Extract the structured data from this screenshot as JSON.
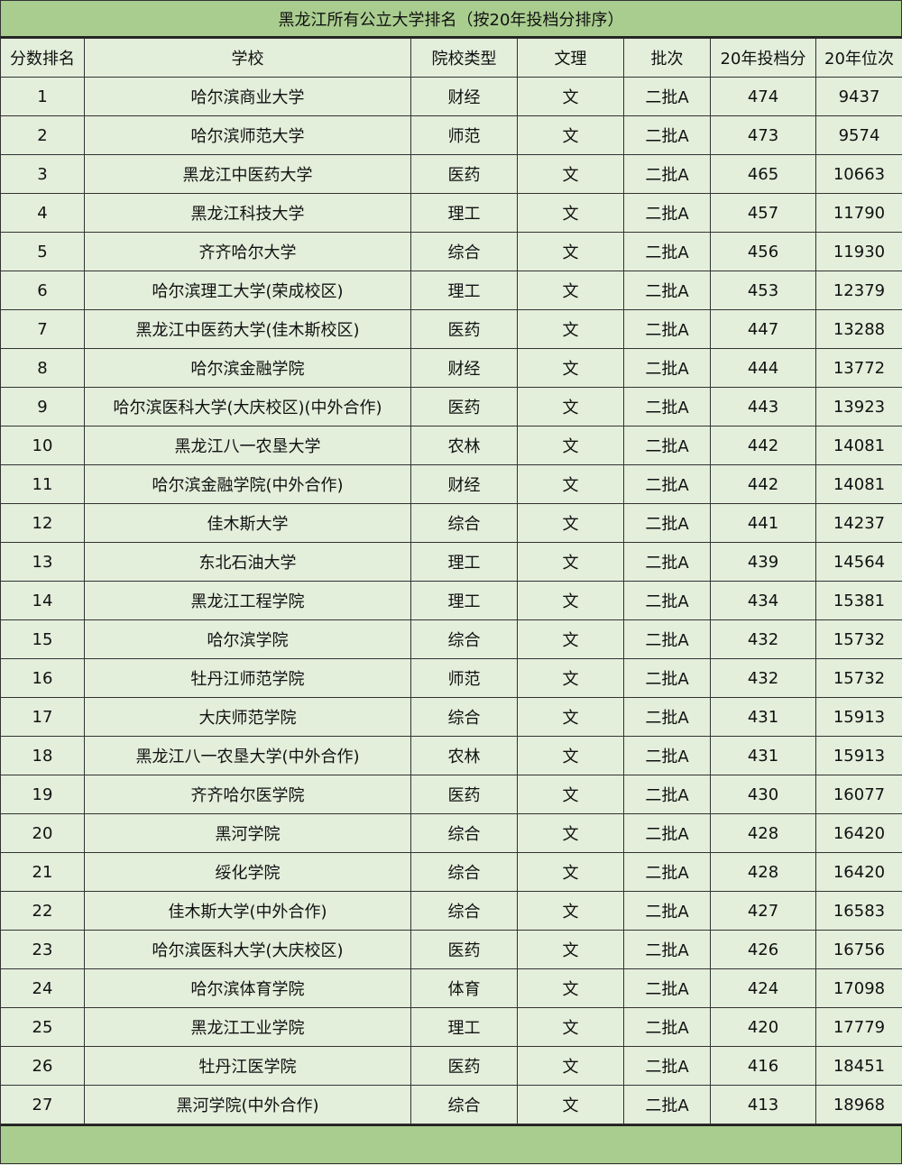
{
  "title": "黑龙江所有公立大学排名（按20年投档分排序）",
  "columns": [
    "分数排名",
    "学校",
    "院校类型",
    "文理",
    "批次",
    "20年投档分",
    "20年位次"
  ],
  "rows": [
    [
      "1",
      "哈尔滨商业大学",
      "财经",
      "文",
      "二批A",
      "474",
      "9437"
    ],
    [
      "2",
      "哈尔滨师范大学",
      "师范",
      "文",
      "二批A",
      "473",
      "9574"
    ],
    [
      "3",
      "黑龙江中医药大学",
      "医药",
      "文",
      "二批A",
      "465",
      "10663"
    ],
    [
      "4",
      "黑龙江科技大学",
      "理工",
      "文",
      "二批A",
      "457",
      "11790"
    ],
    [
      "5",
      "齐齐哈尔大学",
      "综合",
      "文",
      "二批A",
      "456",
      "11930"
    ],
    [
      "6",
      "哈尔滨理工大学(荣成校区)",
      "理工",
      "文",
      "二批A",
      "453",
      "12379"
    ],
    [
      "7",
      "黑龙江中医药大学(佳木斯校区)",
      "医药",
      "文",
      "二批A",
      "447",
      "13288"
    ],
    [
      "8",
      "哈尔滨金融学院",
      "财经",
      "文",
      "二批A",
      "444",
      "13772"
    ],
    [
      "9",
      "哈尔滨医科大学(大庆校区)(中外合作)",
      "医药",
      "文",
      "二批A",
      "443",
      "13923"
    ],
    [
      "10",
      "黑龙江八一农垦大学",
      "农林",
      "文",
      "二批A",
      "442",
      "14081"
    ],
    [
      "11",
      "哈尔滨金融学院(中外合作)",
      "财经",
      "文",
      "二批A",
      "442",
      "14081"
    ],
    [
      "12",
      "佳木斯大学",
      "综合",
      "文",
      "二批A",
      "441",
      "14237"
    ],
    [
      "13",
      "东北石油大学",
      "理工",
      "文",
      "二批A",
      "439",
      "14564"
    ],
    [
      "14",
      "黑龙江工程学院",
      "理工",
      "文",
      "二批A",
      "434",
      "15381"
    ],
    [
      "15",
      "哈尔滨学院",
      "综合",
      "文",
      "二批A",
      "432",
      "15732"
    ],
    [
      "16",
      "牡丹江师范学院",
      "师范",
      "文",
      "二批A",
      "432",
      "15732"
    ],
    [
      "17",
      "大庆师范学院",
      "综合",
      "文",
      "二批A",
      "431",
      "15913"
    ],
    [
      "18",
      "黑龙江八一农垦大学(中外合作)",
      "农林",
      "文",
      "二批A",
      "431",
      "15913"
    ],
    [
      "19",
      "齐齐哈尔医学院",
      "医药",
      "文",
      "二批A",
      "430",
      "16077"
    ],
    [
      "20",
      "黑河学院",
      "综合",
      "文",
      "二批A",
      "428",
      "16420"
    ],
    [
      "21",
      "绥化学院",
      "综合",
      "文",
      "二批A",
      "428",
      "16420"
    ],
    [
      "22",
      "佳木斯大学(中外合作)",
      "综合",
      "文",
      "二批A",
      "427",
      "16583"
    ],
    [
      "23",
      "哈尔滨医科大学(大庆校区)",
      "医药",
      "文",
      "二批A",
      "426",
      "16756"
    ],
    [
      "24",
      "哈尔滨体育学院",
      "体育",
      "文",
      "二批A",
      "424",
      "17098"
    ],
    [
      "25",
      "黑龙江工业学院",
      "理工",
      "文",
      "二批A",
      "420",
      "17779"
    ],
    [
      "26",
      "牡丹江医学院",
      "医药",
      "文",
      "二批A",
      "416",
      "18451"
    ],
    [
      "27",
      "黑河学院(中外合作)",
      "综合",
      "文",
      "二批A",
      "413",
      "18968"
    ]
  ]
}
